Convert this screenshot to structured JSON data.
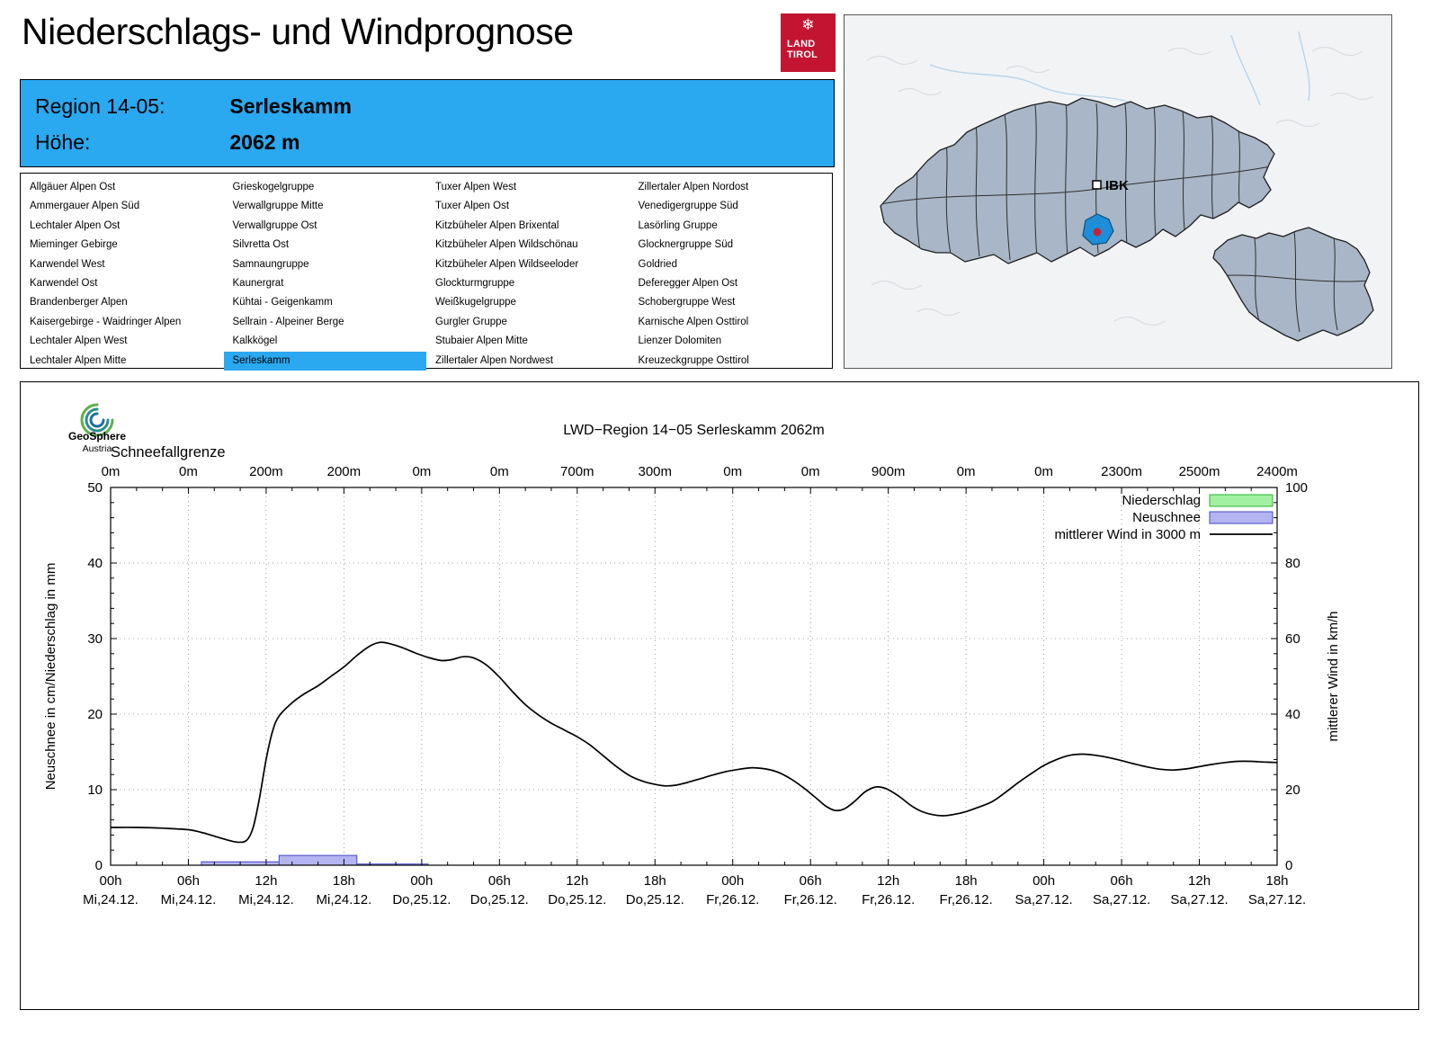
{
  "page": {
    "title": "Niederschlags- und Windprognose"
  },
  "logo": {
    "icon": "❄",
    "line1": "LAND",
    "line2": "TIROL"
  },
  "region_header": {
    "region_label": "Region 14-05:",
    "region_value": "Serleskamm",
    "altitude_label": "Höhe:",
    "altitude_value": "2062 m",
    "accent_color": "#2aa8f0"
  },
  "region_list": {
    "selected": "Serleskamm",
    "columns": [
      [
        "Allgäuer Alpen Ost",
        "Ammergauer Alpen Süd",
        "Lechtaler Alpen Ost",
        "Mieminger Gebirge",
        "Karwendel West",
        "Karwendel Ost",
        "Brandenberger Alpen",
        "Kaisergebirge - Waidringer Alpen",
        "Lechtaler Alpen West",
        "Lechtaler Alpen Mitte"
      ],
      [
        "Grieskogelgruppe",
        "Verwallgruppe Mitte",
        "Verwallgruppe Ost",
        "Silvretta Ost",
        "Samnaungruppe",
        "Kaunergrat",
        "Kühtai - Geigenkamm",
        "Sellrain - Alpeiner Berge",
        "Kalkkögel",
        "Serleskamm"
      ],
      [
        "Tuxer Alpen West",
        "Tuxer Alpen Ost",
        "Kitzbüheler Alpen Brixental",
        "Kitzbüheler Alpen Wildschönau",
        "Kitzbüheler Alpen Wildseeloder",
        "Glockturmgruppe",
        "Weißkugelgruppe",
        "Gurgler Gruppe",
        "Stubaier Alpen Mitte",
        "Zillertaler Alpen Nordwest"
      ],
      [
        "Zillertaler Alpen Nordost",
        "Venedigergruppe Süd",
        "Lasörling Gruppe",
        "Glocknergruppe Süd",
        "Goldried",
        "Deferegger Alpen Ost",
        "Schobergruppe West",
        "Karnische Alpen Osttirol",
        "Lienzer Dolomiten",
        "Kreuzeckgruppe Osttirol"
      ]
    ]
  },
  "map": {
    "ibk_label": "IBK",
    "region_fill": "#a8b6c7",
    "highlight_fill": "#1e8ed8",
    "marker_color": "#c42238"
  },
  "geosphere": {
    "line1": "GeoSphere",
    "line2": "Austria"
  },
  "chart_data": {
    "type": "line",
    "title": "LWD−Region 14−05 Serleskamm 2062m",
    "snowline": {
      "label": "Schneefallgrenze",
      "values": [
        "0m",
        "0m",
        "200m",
        "200m",
        "0m",
        "0m",
        "700m",
        "300m",
        "0m",
        "0m",
        "900m",
        "0m",
        "0m",
        "2300m",
        "2500m",
        "2400m"
      ]
    },
    "axes": {
      "left_label": "Neuschnee in cm/Niederschlag in mm",
      "right_label": "mittlerer Wind in km/h",
      "left_ticks": [
        0,
        10,
        20,
        30,
        40,
        50
      ],
      "right_ticks": [
        0,
        20,
        40,
        60,
        80,
        100
      ],
      "left_range": [
        0,
        50
      ],
      "right_range": [
        0,
        100
      ],
      "x_range_hours": [
        0,
        90
      ],
      "grid": true
    },
    "x_ticks": [
      {
        "hour": 0,
        "time": "00h",
        "date": "Mi,24.12."
      },
      {
        "hour": 6,
        "time": "06h",
        "date": "Mi,24.12."
      },
      {
        "hour": 12,
        "time": "12h",
        "date": "Mi,24.12."
      },
      {
        "hour": 18,
        "time": "18h",
        "date": "Mi,24.12."
      },
      {
        "hour": 24,
        "time": "00h",
        "date": "Do,25.12."
      },
      {
        "hour": 30,
        "time": "06h",
        "date": "Do,25.12."
      },
      {
        "hour": 36,
        "time": "12h",
        "date": "Do,25.12."
      },
      {
        "hour": 42,
        "time": "18h",
        "date": "Do,25.12."
      },
      {
        "hour": 48,
        "time": "00h",
        "date": "Fr,26.12."
      },
      {
        "hour": 54,
        "time": "06h",
        "date": "Fr,26.12."
      },
      {
        "hour": 60,
        "time": "12h",
        "date": "Fr,26.12."
      },
      {
        "hour": 66,
        "time": "18h",
        "date": "Fr,26.12."
      },
      {
        "hour": 72,
        "time": "00h",
        "date": "Sa,27.12."
      },
      {
        "hour": 78,
        "time": "06h",
        "date": "Sa,27.12."
      },
      {
        "hour": 84,
        "time": "12h",
        "date": "Sa,27.12."
      },
      {
        "hour": 90,
        "time": "18h",
        "date": "Sa,27.12."
      }
    ],
    "legend": [
      {
        "label": "Niederschlag",
        "type": "box",
        "fill": "#a2f0a2",
        "stroke": "#2eb42e"
      },
      {
        "label": "Neuschnee",
        "type": "box",
        "fill": "#b4b4f2",
        "stroke": "#4646c8"
      },
      {
        "label": "mittlerer Wind in 3000 m",
        "type": "line",
        "stroke": "#000000"
      }
    ],
    "colors": {
      "neuschnee_fill": "#b4b4f2",
      "neuschnee_stroke": "#4646c8",
      "niederschlag_fill": "#a2f0a2",
      "niederschlag_stroke": "#2eb42e",
      "wind_line": "#000000"
    },
    "neuschnee_bars_cm": [
      {
        "from": 7,
        "to": 13,
        "value": 0.45
      },
      {
        "from": 13,
        "to": 19,
        "value": 1.3
      },
      {
        "from": 19,
        "to": 24.5,
        "value": 0.15
      }
    ],
    "niederschlag_bars_mm": [],
    "wind_kmh": {
      "hours": [
        0,
        2,
        4,
        6,
        7,
        8,
        9,
        9.8,
        10.5,
        11,
        11.5,
        12,
        12.5,
        13,
        14,
        15,
        16,
        17,
        18,
        19,
        20,
        20.8,
        21.6,
        22.5,
        23.5,
        24.5,
        25.5,
        26.3,
        27.2,
        28,
        29,
        30,
        31,
        32,
        33,
        34,
        35,
        36,
        37,
        38,
        39,
        40,
        41,
        42,
        42.8,
        43.6,
        44.5,
        45.5,
        46.5,
        47.5,
        48.5,
        49.5,
        50.5,
        51.5,
        52.5,
        53.5,
        54.5,
        55.2,
        55.9,
        56.6,
        57.4,
        58.2,
        59,
        59.8,
        60.8,
        61.8,
        62.6,
        63.4,
        64.2,
        65,
        66,
        67,
        68,
        69,
        70,
        71,
        72,
        73,
        74,
        75,
        76,
        77,
        78,
        79,
        80,
        81,
        82,
        83,
        84,
        85,
        86,
        87,
        88,
        89,
        90
      ],
      "values": [
        10,
        10,
        9.8,
        9.4,
        8.7,
        7.7,
        6.7,
        6.1,
        6.6,
        10,
        18,
        28,
        35.5,
        39.5,
        43,
        45.5,
        47.5,
        50,
        52.5,
        55.5,
        58,
        59,
        58.6,
        57.6,
        56.2,
        55,
        54.2,
        54.4,
        55.2,
        54.9,
        53,
        49.8,
        46,
        42.5,
        39.8,
        37.6,
        35.8,
        34,
        31.8,
        29,
        26.2,
        23.8,
        22.3,
        21.4,
        21,
        21.2,
        21.9,
        22.9,
        23.9,
        24.8,
        25.4,
        25.8,
        25.5,
        24.6,
        22.8,
        20.4,
        17.6,
        15.6,
        14.5,
        14.9,
        16.9,
        19.4,
        20.7,
        20.3,
        18.3,
        15.7,
        14.2,
        13.4,
        13.1,
        13.4,
        14.2,
        15.4,
        16.8,
        19.2,
        21.8,
        24.2,
        26.4,
        28,
        29.1,
        29.4,
        29.1,
        28.5,
        27.7,
        26.8,
        26,
        25.4,
        25.2,
        25.5,
        26.1,
        26.7,
        27.2,
        27.5,
        27.5,
        27.3,
        27.2
      ]
    }
  }
}
